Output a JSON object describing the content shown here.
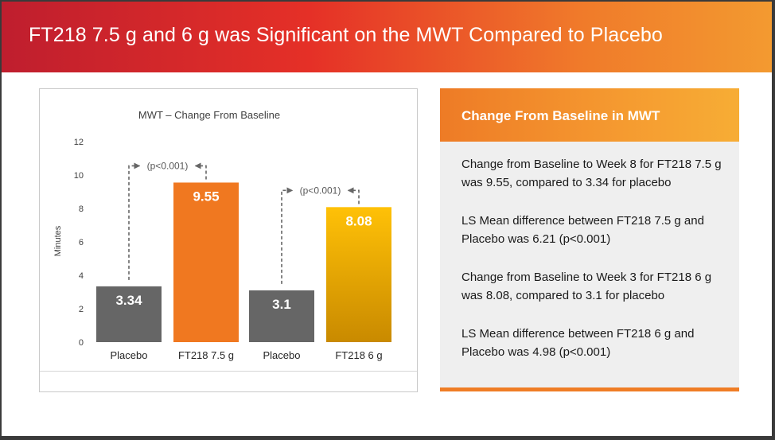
{
  "header": {
    "title": "FT218 7.5 g and 6 g was Significant on the MWT Compared to Placebo"
  },
  "colors": {
    "banner_red": "#bf1e2e",
    "banner_orange": "#f39a30",
    "placebo_bar": "#666666",
    "ft218_75_bar": "#f07820",
    "ft218_6_bar_top": "#ffc107",
    "ft218_6_bar_bottom": "#c98a00",
    "accent_orange": "#ef7d25"
  },
  "chart_data": {
    "type": "bar",
    "title": "MWT – Change From Baseline",
    "ylabel": "Minutes",
    "xlabel": "",
    "ylim": [
      0,
      12
    ],
    "yticks": [
      0,
      2,
      4,
      6,
      8,
      10,
      12
    ],
    "grid": false,
    "categories": [
      "Placebo",
      "FT218 7.5 g",
      "Placebo",
      "FT218 6 g"
    ],
    "values": [
      3.34,
      9.55,
      3.1,
      8.08
    ],
    "data_labels": [
      "3.34",
      "9.55",
      "3.1",
      "8.08"
    ],
    "bar_colors": [
      "placebo_bar",
      "ft218_75_bar",
      "placebo_bar",
      "ft218_6"
    ],
    "annotations": [
      {
        "text": "(p<0.001)",
        "from_index": 0,
        "to_index": 1
      },
      {
        "text": "(p<0.001)",
        "from_index": 2,
        "to_index": 3
      }
    ]
  },
  "side_panel": {
    "heading": "Change From Baseline in MWT",
    "paragraphs": [
      "Change from Baseline to Week 8 for FT218 7.5 g was 9.55, compared to 3.34 for placebo",
      "LS Mean difference between FT218 7.5 g and Placebo was 6.21 (p<0.001)",
      "Change from Baseline to Week 3 for FT218 6 g was 8.08, compared to 3.1 for placebo",
      "LS Mean difference between FT218 6 g and Placebo was 4.98 (p<0.001)"
    ]
  }
}
